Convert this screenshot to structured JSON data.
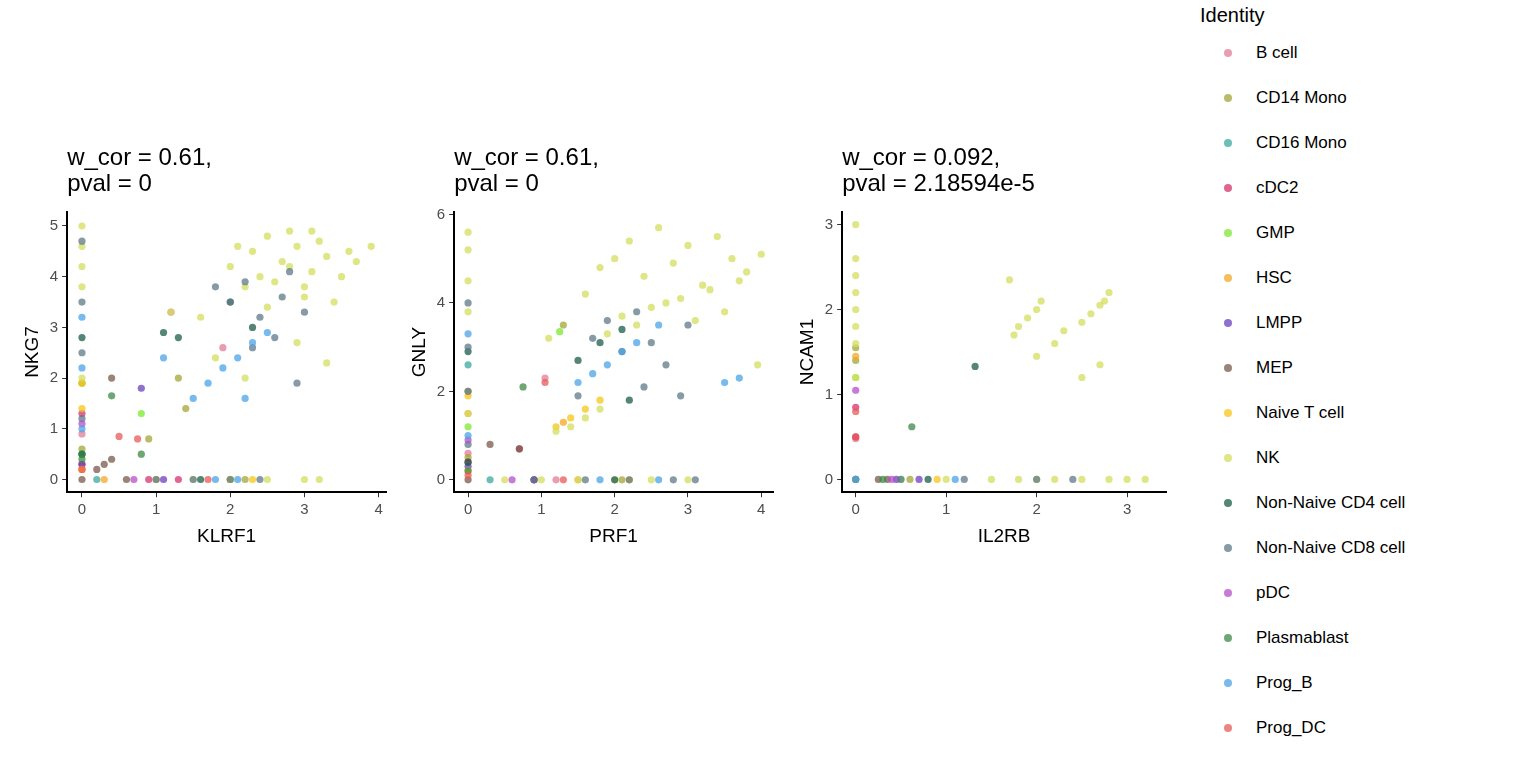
{
  "chart_data": [
    {
      "type": "scatter",
      "title": [
        "w_cor = 0.61,",
        "pval = 0"
      ],
      "x_label": "KLRF1",
      "y_label": "NKG7",
      "xlim": [
        -0.2,
        4.1
      ],
      "ylim": [
        -0.25,
        5.28
      ],
      "xticks": [
        0,
        1,
        2,
        3,
        4
      ],
      "yticks": [
        0,
        1,
        2,
        3,
        4,
        5
      ],
      "grid": false,
      "marker": "circle",
      "series": [
        {
          "name": "B cell",
          "color": "#e37b95",
          "x": [
            0,
            1.2,
            1.9,
            1.0
          ],
          "values": [
            0.9,
            3.3,
            2.6,
            0
          ]
        },
        {
          "name": "CD14 Mono",
          "color": "#a3a535",
          "x": [
            0,
            0,
            1.4,
            1.3,
            0.9,
            2.0,
            2.2
          ],
          "values": [
            1.9,
            0.6,
            1.4,
            2.0,
            0.8,
            0,
            0
          ]
        },
        {
          "name": "CD16 Mono",
          "color": "#3aaa9e",
          "x": [
            0,
            0.2
          ],
          "values": [
            0.5,
            0
          ]
        },
        {
          "name": "cDC2",
          "color": "#d6336c",
          "x": [
            0,
            0,
            0.9,
            1.3
          ],
          "values": [
            1.3,
            0.3,
            0,
            0
          ]
        },
        {
          "name": "GMP",
          "color": "#7ee831",
          "x": [
            0,
            0.8
          ],
          "values": [
            0.5,
            1.3
          ]
        },
        {
          "name": "HSC",
          "color": "#f5a623",
          "x": [
            0,
            0.3
          ],
          "values": [
            0.2,
            0
          ]
        },
        {
          "name": "LMPP",
          "color": "#6a3fbf",
          "x": [
            0,
            0.8,
            1.1
          ],
          "values": [
            0.3,
            1.8,
            0
          ]
        },
        {
          "name": "MEP",
          "color": "#7b5a4a",
          "x": [
            0,
            0.2,
            0.3,
            0.4,
            0.4,
            0.6
          ],
          "values": [
            0,
            0.2,
            0.3,
            0.4,
            2.0,
            0
          ]
        },
        {
          "name": "Naive T cell",
          "color": "#f5c518",
          "x": [
            0,
            0,
            0,
            2.3,
            2.0
          ],
          "values": [
            1.9,
            1.4,
            0.2,
            0,
            0
          ]
        },
        {
          "name": "NK",
          "color": "#d4dd5c",
          "x": [
            0,
            0,
            0,
            0,
            0,
            2.0,
            2.3,
            2.5,
            2.7,
            2.9,
            3.1,
            3.3,
            3.5,
            3.7,
            3.9,
            2.2,
            2.6,
            2.8,
            3.0,
            3.2,
            3.4,
            2.4,
            2.8,
            3.1,
            3.6,
            1.6,
            1.2,
            2.1,
            2.5,
            3.0,
            1.8,
            2.9,
            2.2,
            3.3,
            1.0,
            1.5,
            2.0,
            2.5,
            3.0,
            3.2
          ],
          "values": [
            5.0,
            4.6,
            4.2,
            3.8,
            2.0,
            4.2,
            4.5,
            4.8,
            4.3,
            4.6,
            4.1,
            4.4,
            4.0,
            4.3,
            4.6,
            3.8,
            3.9,
            4.9,
            3.6,
            4.7,
            3.5,
            4.0,
            4.2,
            4.9,
            4.5,
            3.2,
            3.3,
            4.6,
            3.4,
            3.8,
            2.4,
            2.7,
            2.0,
            2.3,
            0,
            0,
            0,
            0,
            0,
            0
          ]
        },
        {
          "name": "Non-Naive CD4 cell",
          "color": "#1b5e4a",
          "x": [
            0,
            0,
            1.1,
            1.3,
            2.0,
            2.3,
            1.6
          ],
          "values": [
            2.8,
            0.5,
            2.9,
            2.8,
            3.5,
            3.0,
            0
          ]
        },
        {
          "name": "Non-Naive CD8 cell",
          "color": "#5f7a88",
          "x": [
            0,
            0,
            0,
            0,
            1.8,
            2.0,
            2.2,
            2.4,
            2.6,
            2.8,
            3.0,
            2.3,
            2.7,
            2.9,
            1.0,
            1.5,
            2.0,
            2.4
          ],
          "values": [
            4.7,
            3.5,
            2.5,
            1.2,
            3.8,
            3.5,
            3.9,
            3.2,
            2.8,
            4.1,
            3.3,
            2.6,
            3.6,
            1.9,
            0,
            0,
            0,
            0
          ]
        },
        {
          "name": "pDC",
          "color": "#b44fc9",
          "x": [
            0,
            0.7
          ],
          "values": [
            1.1,
            0
          ]
        },
        {
          "name": "Plasmablast",
          "color": "#3e8a46",
          "x": [
            0,
            0.8,
            0.4
          ],
          "values": [
            0.4,
            0.5,
            1.65
          ]
        },
        {
          "name": "Prog_B",
          "color": "#4aa3e8",
          "x": [
            0,
            0,
            0,
            1.5,
            1.7,
            1.9,
            2.1,
            2.3,
            2.5,
            1.1,
            2.2,
            1.8,
            2.1
          ],
          "values": [
            3.2,
            2.2,
            1.0,
            1.6,
            1.9,
            2.2,
            2.4,
            2.7,
            2.9,
            2.4,
            1.6,
            0,
            0
          ]
        },
        {
          "name": "Prog_DC",
          "color": "#e85a5a",
          "x": [
            0,
            0.5,
            0.75,
            1.7
          ],
          "values": [
            0.2,
            0.85,
            0.8,
            0
          ]
        }
      ]
    },
    {
      "type": "scatter",
      "title": [
        "w_cor = 0.61,",
        "pval = 0"
      ],
      "x_label": "PRF1",
      "y_label": "GNLY",
      "xlim": [
        -0.19,
        4.16
      ],
      "ylim": [
        -0.28,
        6.06
      ],
      "xticks": [
        0,
        1,
        2,
        3,
        4
      ],
      "yticks": [
        0,
        2,
        4,
        6
      ],
      "grid": false,
      "marker": "circle",
      "series": [
        {
          "name": "B cell",
          "color": "#e37b95",
          "x": [
            0,
            1.05,
            1.2
          ],
          "values": [
            0.6,
            2.3,
            0
          ]
        },
        {
          "name": "CD14 Mono",
          "color": "#a3a535",
          "x": [
            0,
            0,
            1.3,
            2.1
          ],
          "values": [
            2.0,
            0.5,
            3.5,
            0
          ]
        },
        {
          "name": "CD16 Mono",
          "color": "#3aaa9e",
          "x": [
            0,
            0.3
          ],
          "values": [
            2.6,
            0
          ]
        },
        {
          "name": "cDC2",
          "color": "#d6336c",
          "x": [
            0,
            0.7,
            0.9
          ],
          "values": [
            0.4,
            0.7,
            0
          ]
        },
        {
          "name": "GMP",
          "color": "#7ee831",
          "x": [
            0,
            1.25
          ],
          "values": [
            1.2,
            3.35
          ]
        },
        {
          "name": "HSC",
          "color": "#f5a623",
          "x": [
            0,
            1.3,
            1.5
          ],
          "values": [
            1.5,
            1.3,
            0
          ]
        },
        {
          "name": "LMPP",
          "color": "#6a3fbf",
          "x": [
            0,
            0.9
          ],
          "values": [
            0.3,
            0
          ]
        },
        {
          "name": "MEP",
          "color": "#7b5a4a",
          "x": [
            0,
            0.3,
            0.7
          ],
          "values": [
            0,
            0.8,
            0.7
          ]
        },
        {
          "name": "Naive T cell",
          "color": "#f5c518",
          "x": [
            0,
            0,
            1.2,
            1.4,
            1.6,
            1.8,
            2.2
          ],
          "values": [
            1.9,
            0.2,
            1.2,
            1.4,
            1.6,
            1.8,
            0
          ]
        },
        {
          "name": "NK",
          "color": "#d4dd5c",
          "x": [
            0,
            0,
            0,
            0,
            0,
            1.6,
            1.8,
            2.0,
            2.2,
            2.4,
            2.6,
            2.8,
            3.0,
            3.2,
            3.4,
            3.6,
            3.8,
            4.0,
            2.1,
            2.5,
            2.9,
            3.3,
            3.7,
            1.9,
            2.3,
            2.7,
            3.1,
            3.5,
            1.2,
            1.4,
            1.6,
            1.8,
            3.95,
            1.1,
            0.5,
            1.0,
            1.5,
            2.0,
            2.5,
            3.0
          ],
          "values": [
            5.6,
            5.2,
            4.5,
            3.8,
            1.5,
            4.2,
            4.8,
            5.0,
            5.4,
            4.6,
            5.7,
            4.9,
            5.3,
            4.4,
            5.5,
            5.0,
            4.7,
            5.1,
            3.7,
            3.9,
            4.1,
            4.3,
            4.5,
            3.3,
            3.5,
            4.0,
            3.6,
            3.8,
            1.1,
            1.2,
            1.4,
            1.6,
            2.6,
            3.2,
            0,
            0,
            0,
            0,
            0,
            0
          ]
        },
        {
          "name": "Non-Naive CD4 cell",
          "color": "#1b5e4a",
          "x": [
            0,
            0,
            1.5,
            1.8,
            2.1,
            2.2,
            2.0
          ],
          "values": [
            2.9,
            0.4,
            2.7,
            3.1,
            3.4,
            1.8,
            0
          ]
        },
        {
          "name": "Non-Naive CD8 cell",
          "color": "#5f7a88",
          "x": [
            0,
            0,
            0,
            0,
            1.7,
            1.9,
            2.1,
            2.3,
            2.5,
            2.7,
            3.0,
            2.4,
            1.5,
            2.9,
            0.9,
            1.6,
            2.2,
            2.8,
            3.1
          ],
          "values": [
            4.0,
            3.0,
            2.0,
            0.8,
            3.2,
            3.6,
            2.9,
            3.8,
            3.1,
            2.6,
            3.5,
            2.1,
            1.9,
            1.9,
            0,
            0,
            0,
            0,
            0
          ]
        },
        {
          "name": "pDC",
          "color": "#b44fc9",
          "x": [
            0,
            0.6
          ],
          "values": [
            0.9,
            0
          ]
        },
        {
          "name": "Plasmablast",
          "color": "#3e8a46",
          "x": [
            0,
            0.75
          ],
          "values": [
            0.2,
            2.1
          ]
        },
        {
          "name": "Prog_B",
          "color": "#4aa3e8",
          "x": [
            0,
            0,
            1.5,
            1.7,
            1.9,
            2.1,
            2.3,
            2.6,
            3.5,
            3.7,
            1.8,
            2.6
          ],
          "values": [
            3.3,
            1.0,
            2.2,
            2.4,
            2.6,
            2.9,
            3.1,
            3.5,
            2.2,
            2.3,
            0,
            0
          ]
        },
        {
          "name": "Prog_DC",
          "color": "#e85a5a",
          "x": [
            0,
            1.05,
            1.3
          ],
          "values": [
            0.1,
            2.2,
            0
          ]
        }
      ]
    },
    {
      "type": "scatter",
      "title": [
        "w_cor = 0.092,",
        "pval = 2.18594e-5"
      ],
      "x_label": "IL2RB",
      "y_label": "NCAM1",
      "xlim": [
        -0.15,
        3.43
      ],
      "ylim": [
        -0.15,
        3.15
      ],
      "xticks": [
        0,
        1,
        2,
        3
      ],
      "yticks": [
        0,
        1,
        2,
        3
      ],
      "grid": false,
      "marker": "circle",
      "legend": "right",
      "legend_title": "Identity",
      "series": [
        {
          "name": "B cell",
          "color": "#e37b95",
          "x": [
            0
          ],
          "values": [
            0.48
          ]
        },
        {
          "name": "CD14 Mono",
          "color": "#a3a535",
          "x": [
            0,
            0,
            0.6
          ],
          "values": [
            1.55,
            1.4,
            0
          ]
        },
        {
          "name": "CD16 Mono",
          "color": "#3aaa9e",
          "x": [
            0
          ],
          "values": [
            0
          ]
        },
        {
          "name": "cDC2",
          "color": "#d6336c",
          "x": [
            0,
            0
          ],
          "values": [
            0.85,
            0.5
          ]
        },
        {
          "name": "GMP",
          "color": "#7ee831",
          "x": [
            0,
            0.5
          ],
          "values": [
            1.2,
            0
          ]
        },
        {
          "name": "HSC",
          "color": "#f5a623",
          "x": [
            0
          ],
          "values": [
            1.45
          ]
        },
        {
          "name": "LMPP",
          "color": "#6a3fbf",
          "x": [
            0.45,
            0.7
          ],
          "values": [
            0,
            0
          ]
        },
        {
          "name": "MEP",
          "color": "#7b5a4a",
          "x": [
            0.25,
            0.35
          ],
          "values": [
            0,
            0
          ]
        },
        {
          "name": "Naive T cell",
          "color": "#f5c518",
          "x": [
            0,
            0.9
          ],
          "values": [
            0,
            0
          ]
        },
        {
          "name": "NK",
          "color": "#d4dd5c",
          "x": [
            0,
            0,
            0,
            0,
            0,
            0,
            0,
            0,
            1.75,
            1.8,
            1.9,
            2.0,
            2.05,
            1.7,
            2.2,
            2.5,
            2.6,
            2.7,
            2.75,
            2.8,
            2.3,
            2.0,
            2.7,
            2.5,
            1.0,
            1.5,
            1.8,
            2.0,
            2.2,
            2.5,
            2.8,
            3.0,
            3.2
          ],
          "values": [
            3.0,
            2.6,
            2.4,
            2.2,
            2.0,
            1.8,
            1.6,
            1.2,
            1.7,
            1.8,
            1.9,
            2.0,
            2.1,
            2.35,
            1.6,
            1.85,
            1.95,
            2.05,
            2.1,
            2.2,
            1.75,
            1.45,
            1.35,
            1.2,
            0,
            0,
            0,
            0,
            0,
            0,
            0,
            0,
            0
          ]
        },
        {
          "name": "Non-Naive CD4 cell",
          "color": "#1b5e4a",
          "x": [
            1.32,
            0.8
          ],
          "values": [
            1.33,
            0
          ]
        },
        {
          "name": "Non-Naive CD8 cell",
          "color": "#5f7a88",
          "x": [
            0,
            0.5,
            1.2,
            2.0,
            2.4
          ],
          "values": [
            0,
            0,
            0,
            0,
            0
          ]
        },
        {
          "name": "pDC",
          "color": "#b44fc9",
          "x": [
            0,
            0.4
          ],
          "values": [
            1.05,
            0
          ]
        },
        {
          "name": "Plasmablast",
          "color": "#3e8a46",
          "x": [
            0.62,
            0.3
          ],
          "values": [
            0.62,
            0
          ]
        },
        {
          "name": "Prog_B",
          "color": "#4aa3e8",
          "x": [
            0,
            1.1
          ],
          "values": [
            0,
            0
          ]
        },
        {
          "name": "Prog_DC",
          "color": "#e85a5a",
          "x": [
            0,
            0
          ],
          "values": [
            0.8,
            0.5
          ]
        }
      ]
    }
  ]
}
